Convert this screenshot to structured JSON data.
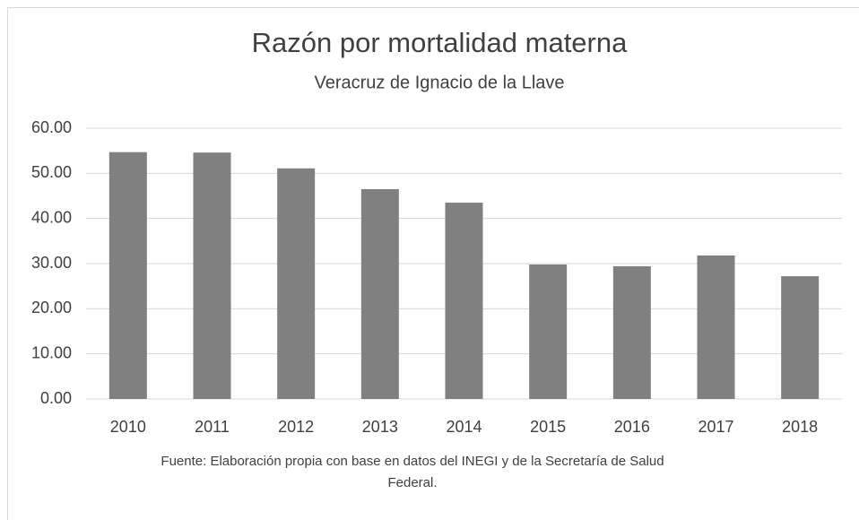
{
  "chart_data": {
    "type": "bar",
    "title": "Razón por mortalidad materna",
    "subtitle": "Veracruz de Ignacio de la Llave",
    "source": "Fuente: Elaboración propia con base en datos del INEGI y de la Secretaría de Salud Federal.",
    "categories": [
      "2010",
      "2011",
      "2012",
      "2013",
      "2014",
      "2015",
      "2016",
      "2017",
      "2018"
    ],
    "values": [
      54.7,
      54.6,
      51.1,
      46.5,
      43.5,
      29.8,
      29.4,
      31.8,
      27.2
    ],
    "color": "#808080",
    "ylim": [
      0,
      60
    ],
    "yticks": [
      {
        "value": 0,
        "label": "0.00"
      },
      {
        "value": 10,
        "label": "10.00"
      },
      {
        "value": 20,
        "label": "20.00"
      },
      {
        "value": 30,
        "label": "30.00"
      },
      {
        "value": 40,
        "label": "40.00"
      },
      {
        "value": 50,
        "label": "50.00"
      },
      {
        "value": 60,
        "label": "60.00"
      }
    ],
    "grid": true
  }
}
